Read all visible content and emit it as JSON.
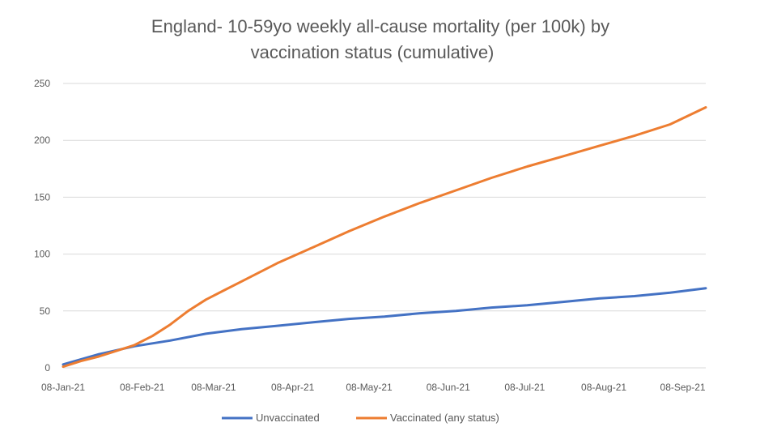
{
  "chart_data": {
    "type": "line",
    "title_lines": [
      "England- 10-59yo weekly all-cause mortality (per 100k) by",
      "vaccination status (cumulative)"
    ],
    "xlabel": "",
    "ylabel": "",
    "ylim": [
      0,
      250
    ],
    "yticks": [
      0,
      50,
      100,
      150,
      200,
      250
    ],
    "x_tick_labels": [
      "08-Jan-21",
      "08-Feb-21",
      "08-Mar-21",
      "08-Apr-21",
      "08-May-21",
      "08-Jun-21",
      "08-Jul-21",
      "08-Aug-21",
      "08-Sep-21"
    ],
    "x_tick_weeks": [
      0,
      4.43,
      8.43,
      12.86,
      17.14,
      21.57,
      25.86,
      30.29,
      34.71
    ],
    "grid": true,
    "legend_position": "bottom",
    "series": [
      {
        "name": "Unvaccinated",
        "color": "#4472c4",
        "weeks": [
          0,
          2,
          4,
          6,
          8,
          10,
          12,
          14,
          16,
          18,
          20,
          22,
          24,
          26,
          28,
          30,
          32,
          34,
          36
        ],
        "values": [
          3,
          12,
          19,
          24,
          30,
          34,
          37,
          40,
          43,
          45,
          48,
          50,
          53,
          55,
          58,
          61,
          63,
          66,
          70
        ]
      },
      {
        "name": "Vaccinated (any status)",
        "color": "#ed7d31",
        "weeks": [
          0,
          1,
          2,
          3,
          4,
          5,
          6,
          7,
          8,
          9,
          10,
          12,
          14,
          16,
          18,
          20,
          22,
          24,
          26,
          28,
          30,
          32,
          34,
          36
        ],
        "values": [
          1,
          6,
          10,
          15,
          20,
          28,
          38,
          50,
          60,
          68,
          76,
          92,
          106,
          120,
          133,
          145,
          156,
          167,
          177,
          186,
          195,
          204,
          214,
          229
        ]
      }
    ]
  }
}
